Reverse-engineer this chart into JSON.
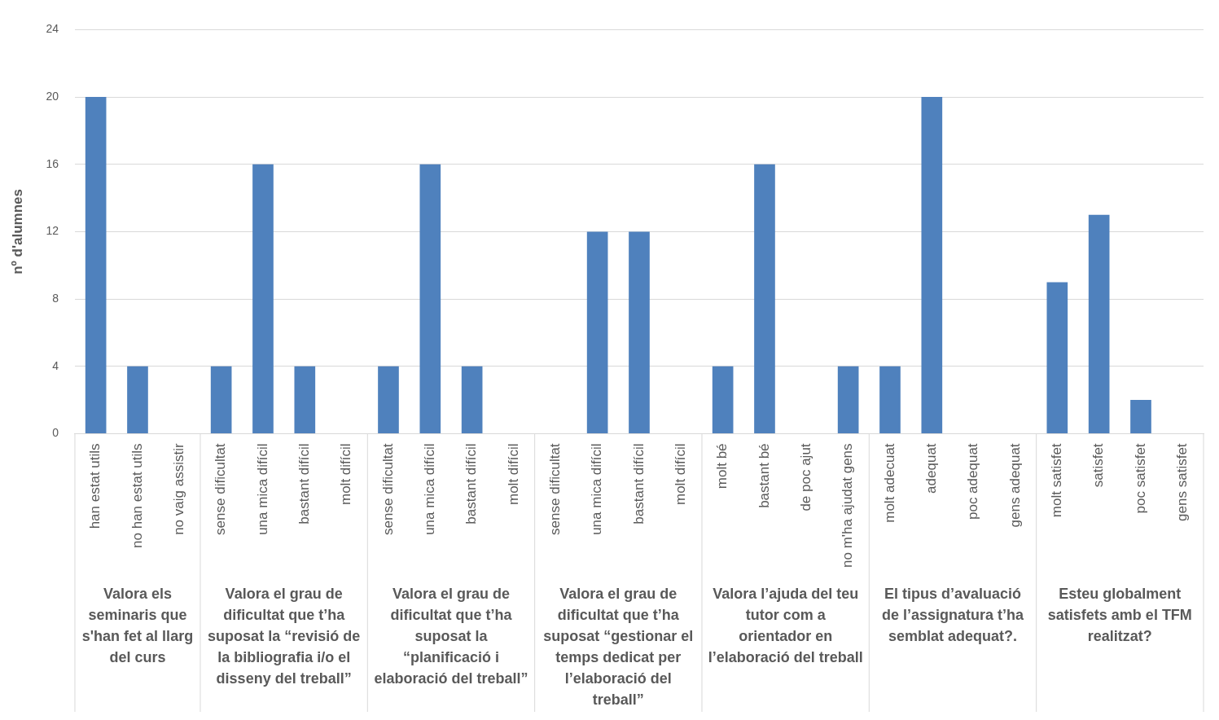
{
  "chart_data": {
    "type": "bar",
    "ylabel": "nº d'alumnes",
    "categories": [
      "han estat utils",
      "no han estat utils",
      "no vaig assistir",
      "sense dificultat",
      "una mica difícil",
      "bastant difícil",
      "molt difícil",
      "sense dificultat",
      "una mica difícil",
      "bastant difícil",
      "molt difícil",
      "sense dificultat",
      "una mica difícil",
      "bastant difícil",
      "molt difícil",
      "molt bé",
      "bastant bé",
      "de poc ajut",
      "no m'ha ajudat gens",
      "molt adecuat",
      "adequat",
      "poc adequat",
      "gens adequat",
      "molt satisfet",
      "satisfet",
      "poc satisfet",
      "gens satisfet"
    ],
    "values": [
      20,
      4,
      0,
      4,
      16,
      4,
      0,
      4,
      16,
      4,
      0,
      0,
      12,
      12,
      0,
      4,
      16,
      0,
      4,
      4,
      20,
      0,
      0,
      9,
      13,
      2,
      0
    ],
    "color": "#4f81bd",
    "ylim": [
      0,
      24
    ],
    "yticks": [
      0,
      4,
      8,
      12,
      16,
      20,
      24
    ],
    "grid": "y",
    "legend": false,
    "annotations": [
      "Valora els seminaris que s'han fet al llarg del curs",
      "Valora el grau de dificultat que t’ha suposat la “revisió de la bibliografia i/o el disseny del treball”",
      "Valora el grau de dificultat que t’ha suposat la “planificació i elaboració del treball”",
      "Valora el grau de dificultat que t’ha suposat “gestionar el temps dedicat per l’elaboració del treball”",
      "Valora l’ajuda del teu tutor com a orientador en l’elaboració del treball",
      "El tipus d’avaluació de l’assignatura t’ha semblat adequat?.",
      "Esteu globalment satisfets amb el TFM realitzat?"
    ]
  }
}
